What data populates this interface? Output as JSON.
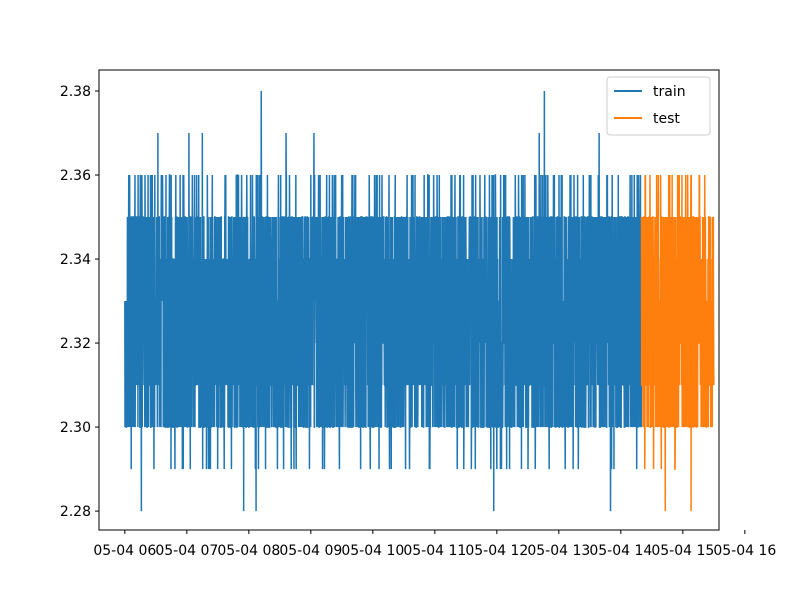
{
  "chart_data": {
    "type": "line",
    "title": "",
    "xlabel": "",
    "ylabel": "",
    "x_axis_kind": "datetime (hourly ticks)",
    "x_ticks": [
      "05-04 06",
      "05-04 07",
      "05-04 08",
      "05-04 09",
      "05-04 10",
      "05-04 11",
      "05-04 12",
      "05-04 13",
      "05-04 14",
      "05-04 15",
      "05-04 16"
    ],
    "xlim": [
      "05-04 05:35",
      "05-04 15:35"
    ],
    "y_ticks": [
      "2.28",
      "2.30",
      "2.32",
      "2.34",
      "2.36",
      "2.38"
    ],
    "ylim": [
      2.2755,
      2.385
    ],
    "grid": false,
    "legend_position": "top-right",
    "series": [
      {
        "name": "train",
        "color": "#1f77b4",
        "x_range": [
          "05-04 06:00",
          "05-04 14:20"
        ],
        "y_band": [
          2.3,
          2.35
        ],
        "y_min": 2.28,
        "y_max": 2.38,
        "peaks": [
          {
            "x": "05-04 08:12",
            "y": 2.38
          },
          {
            "x": "05-04 12:46",
            "y": 2.38
          },
          {
            "x": "05-04 06:32",
            "y": 2.37
          },
          {
            "x": "05-04 07:02",
            "y": 2.37
          },
          {
            "x": "05-04 07:15",
            "y": 2.37
          },
          {
            "x": "05-04 08:36",
            "y": 2.37
          },
          {
            "x": "05-04 09:03",
            "y": 2.37
          },
          {
            "x": "05-04 12:41",
            "y": 2.37
          },
          {
            "x": "05-04 13:39",
            "y": 2.37
          }
        ],
        "troughs": [
          {
            "x": "05-04 06:16",
            "y": 2.28
          },
          {
            "x": "05-04 07:55",
            "y": 2.28
          },
          {
            "x": "05-04 08:07",
            "y": 2.28
          },
          {
            "x": "05-04 11:57",
            "y": 2.28
          },
          {
            "x": "05-04 13:50",
            "y": 2.28
          }
        ]
      },
      {
        "name": "test",
        "color": "#ff7f0e",
        "x_range": [
          "05-04 14:20",
          "05-04 15:30"
        ],
        "y_band": [
          2.3,
          2.35
        ],
        "y_min": 2.28,
        "y_max": 2.36,
        "troughs": [
          {
            "x": "05-04 14:43",
            "y": 2.28
          },
          {
            "x": "05-04 15:08",
            "y": 2.28
          }
        ]
      }
    ]
  }
}
